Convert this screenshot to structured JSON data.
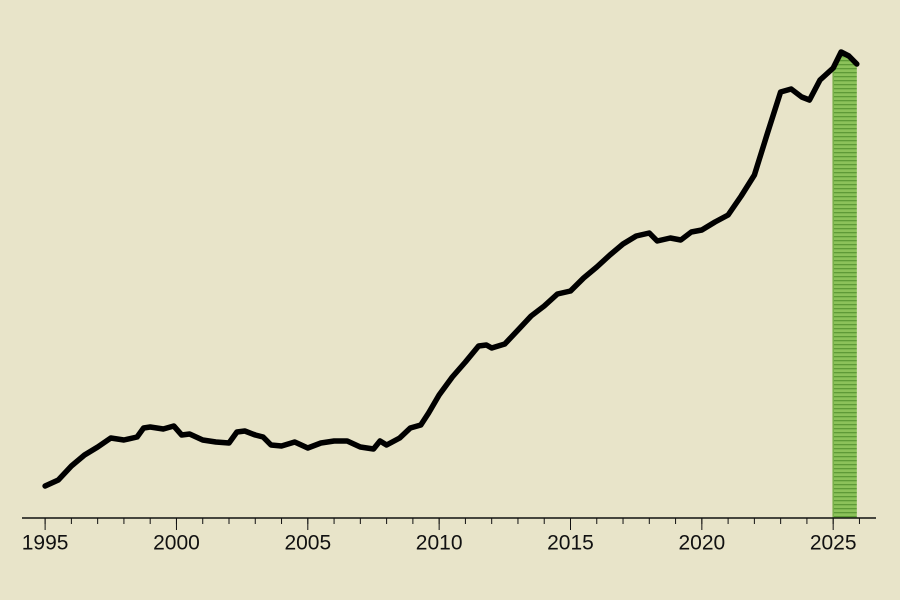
{
  "chart_data": {
    "type": "line",
    "x": [
      1995.0,
      1995.5,
      1996.0,
      1996.5,
      1997.0,
      1997.5,
      1998.0,
      1998.5,
      1998.75,
      1999.0,
      1999.5,
      1999.9,
      2000.2,
      2000.5,
      2001.0,
      2001.5,
      2002.0,
      2002.3,
      2002.6,
      2003.0,
      2003.3,
      2003.6,
      2004.0,
      2004.5,
      2005.0,
      2005.5,
      2006.0,
      2006.5,
      2007.0,
      2007.5,
      2007.75,
      2008.0,
      2008.5,
      2008.9,
      2009.3,
      2009.6,
      2010.0,
      2010.5,
      2011.0,
      2011.5,
      2011.8,
      2012.0,
      2012.5,
      2013.0,
      2013.5,
      2014.0,
      2014.5,
      2015.0,
      2015.5,
      2016.0,
      2016.5,
      2017.0,
      2017.5,
      2018.0,
      2018.3,
      2018.8,
      2019.2,
      2019.6,
      2020.0,
      2020.5,
      2021.0,
      2021.5,
      2022.0,
      2022.5,
      2023.0,
      2023.4,
      2023.8,
      2024.1,
      2024.5,
      2025.0,
      2025.3,
      2025.6,
      2025.9
    ],
    "values": [
      6.4,
      7.6,
      10.4,
      12.6,
      14.2,
      16,
      15.6,
      16.2,
      18,
      18.2,
      17.8,
      18.4,
      16.6,
      16.8,
      15.6,
      15.2,
      15,
      17.2,
      17.4,
      16.6,
      16.2,
      14.6,
      14.4,
      15.2,
      14,
      15,
      15.4,
      15.4,
      14.2,
      13.8,
      15.4,
      14.6,
      16,
      18,
      18.6,
      21,
      24.6,
      28.2,
      31.2,
      34.4,
      34.6,
      34,
      34.8,
      37.6,
      40.4,
      42.4,
      44.8,
      45.4,
      48,
      50.2,
      52.6,
      54.8,
      56.4,
      57,
      55.4,
      56,
      55.6,
      57.2,
      57.6,
      59.2,
      60.6,
      64.4,
      68.6,
      77,
      85.2,
      85.8,
      84.2,
      83.6,
      87.6,
      90,
      93.2,
      92.4,
      90.8
    ],
    "color": "#000000",
    "highlight": {
      "range": [
        2025,
        2026
      ],
      "color": "#79b04a"
    },
    "xlim": [
      1994.12,
      2026.63
    ],
    "xticks": [
      1995,
      2000,
      2005,
      2010,
      2015,
      2020,
      2025
    ],
    "ylim": [
      0,
      100
    ]
  }
}
